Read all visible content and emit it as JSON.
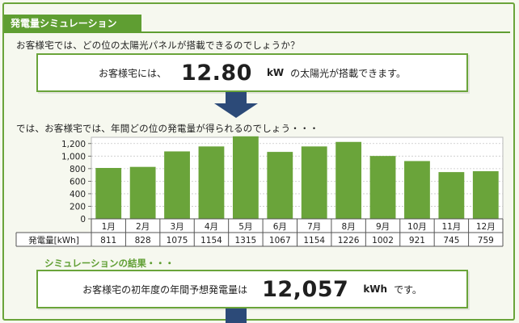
{
  "header": {
    "title": "発電量シミュレーション"
  },
  "question1": "お客様宅では、どの位の太陽光パネルが搭載できるのでしょうか？",
  "capacity_box": {
    "prefix": "お客様宅には、",
    "value": "12.80",
    "unit": "kW",
    "suffix": "の太陽光が搭載できます。"
  },
  "question2": "では、お客様宅では、年間どの位の発電量が得られるのでしょう・・・",
  "result_label": "シミュレーションの結果・・・",
  "annual_box": {
    "prefix": "お客様宅の初年度の年間予想発電量は",
    "value": "12,057",
    "unit": "kWh",
    "suffix": "です。"
  },
  "colors": {
    "accent": "#5f9e32",
    "bar": "#6aa43a",
    "arrow": "#2c4a78"
  },
  "chart_data": {
    "type": "bar",
    "categories": [
      "1月",
      "2月",
      "3月",
      "4月",
      "5月",
      "6月",
      "7月",
      "8月",
      "9月",
      "10月",
      "11月",
      "12月"
    ],
    "values": [
      811,
      828,
      1075,
      1154,
      1315,
      1067,
      1154,
      1226,
      1002,
      921,
      745,
      759
    ],
    "ylim": [
      0,
      1300
    ],
    "yticks": [
      "0",
      "200",
      "400",
      "600",
      "800",
      "1,000",
      "1,200"
    ],
    "ytick_values": [
      0,
      200,
      400,
      600,
      800,
      1000,
      1200
    ],
    "table_row_label": "発電量[kWh]",
    "table_values": [
      "811",
      "828",
      "1075",
      "1154",
      "1315",
      "1067",
      "1154",
      "1226",
      "1002",
      "921",
      "745",
      "759"
    ],
    "grid": true
  }
}
